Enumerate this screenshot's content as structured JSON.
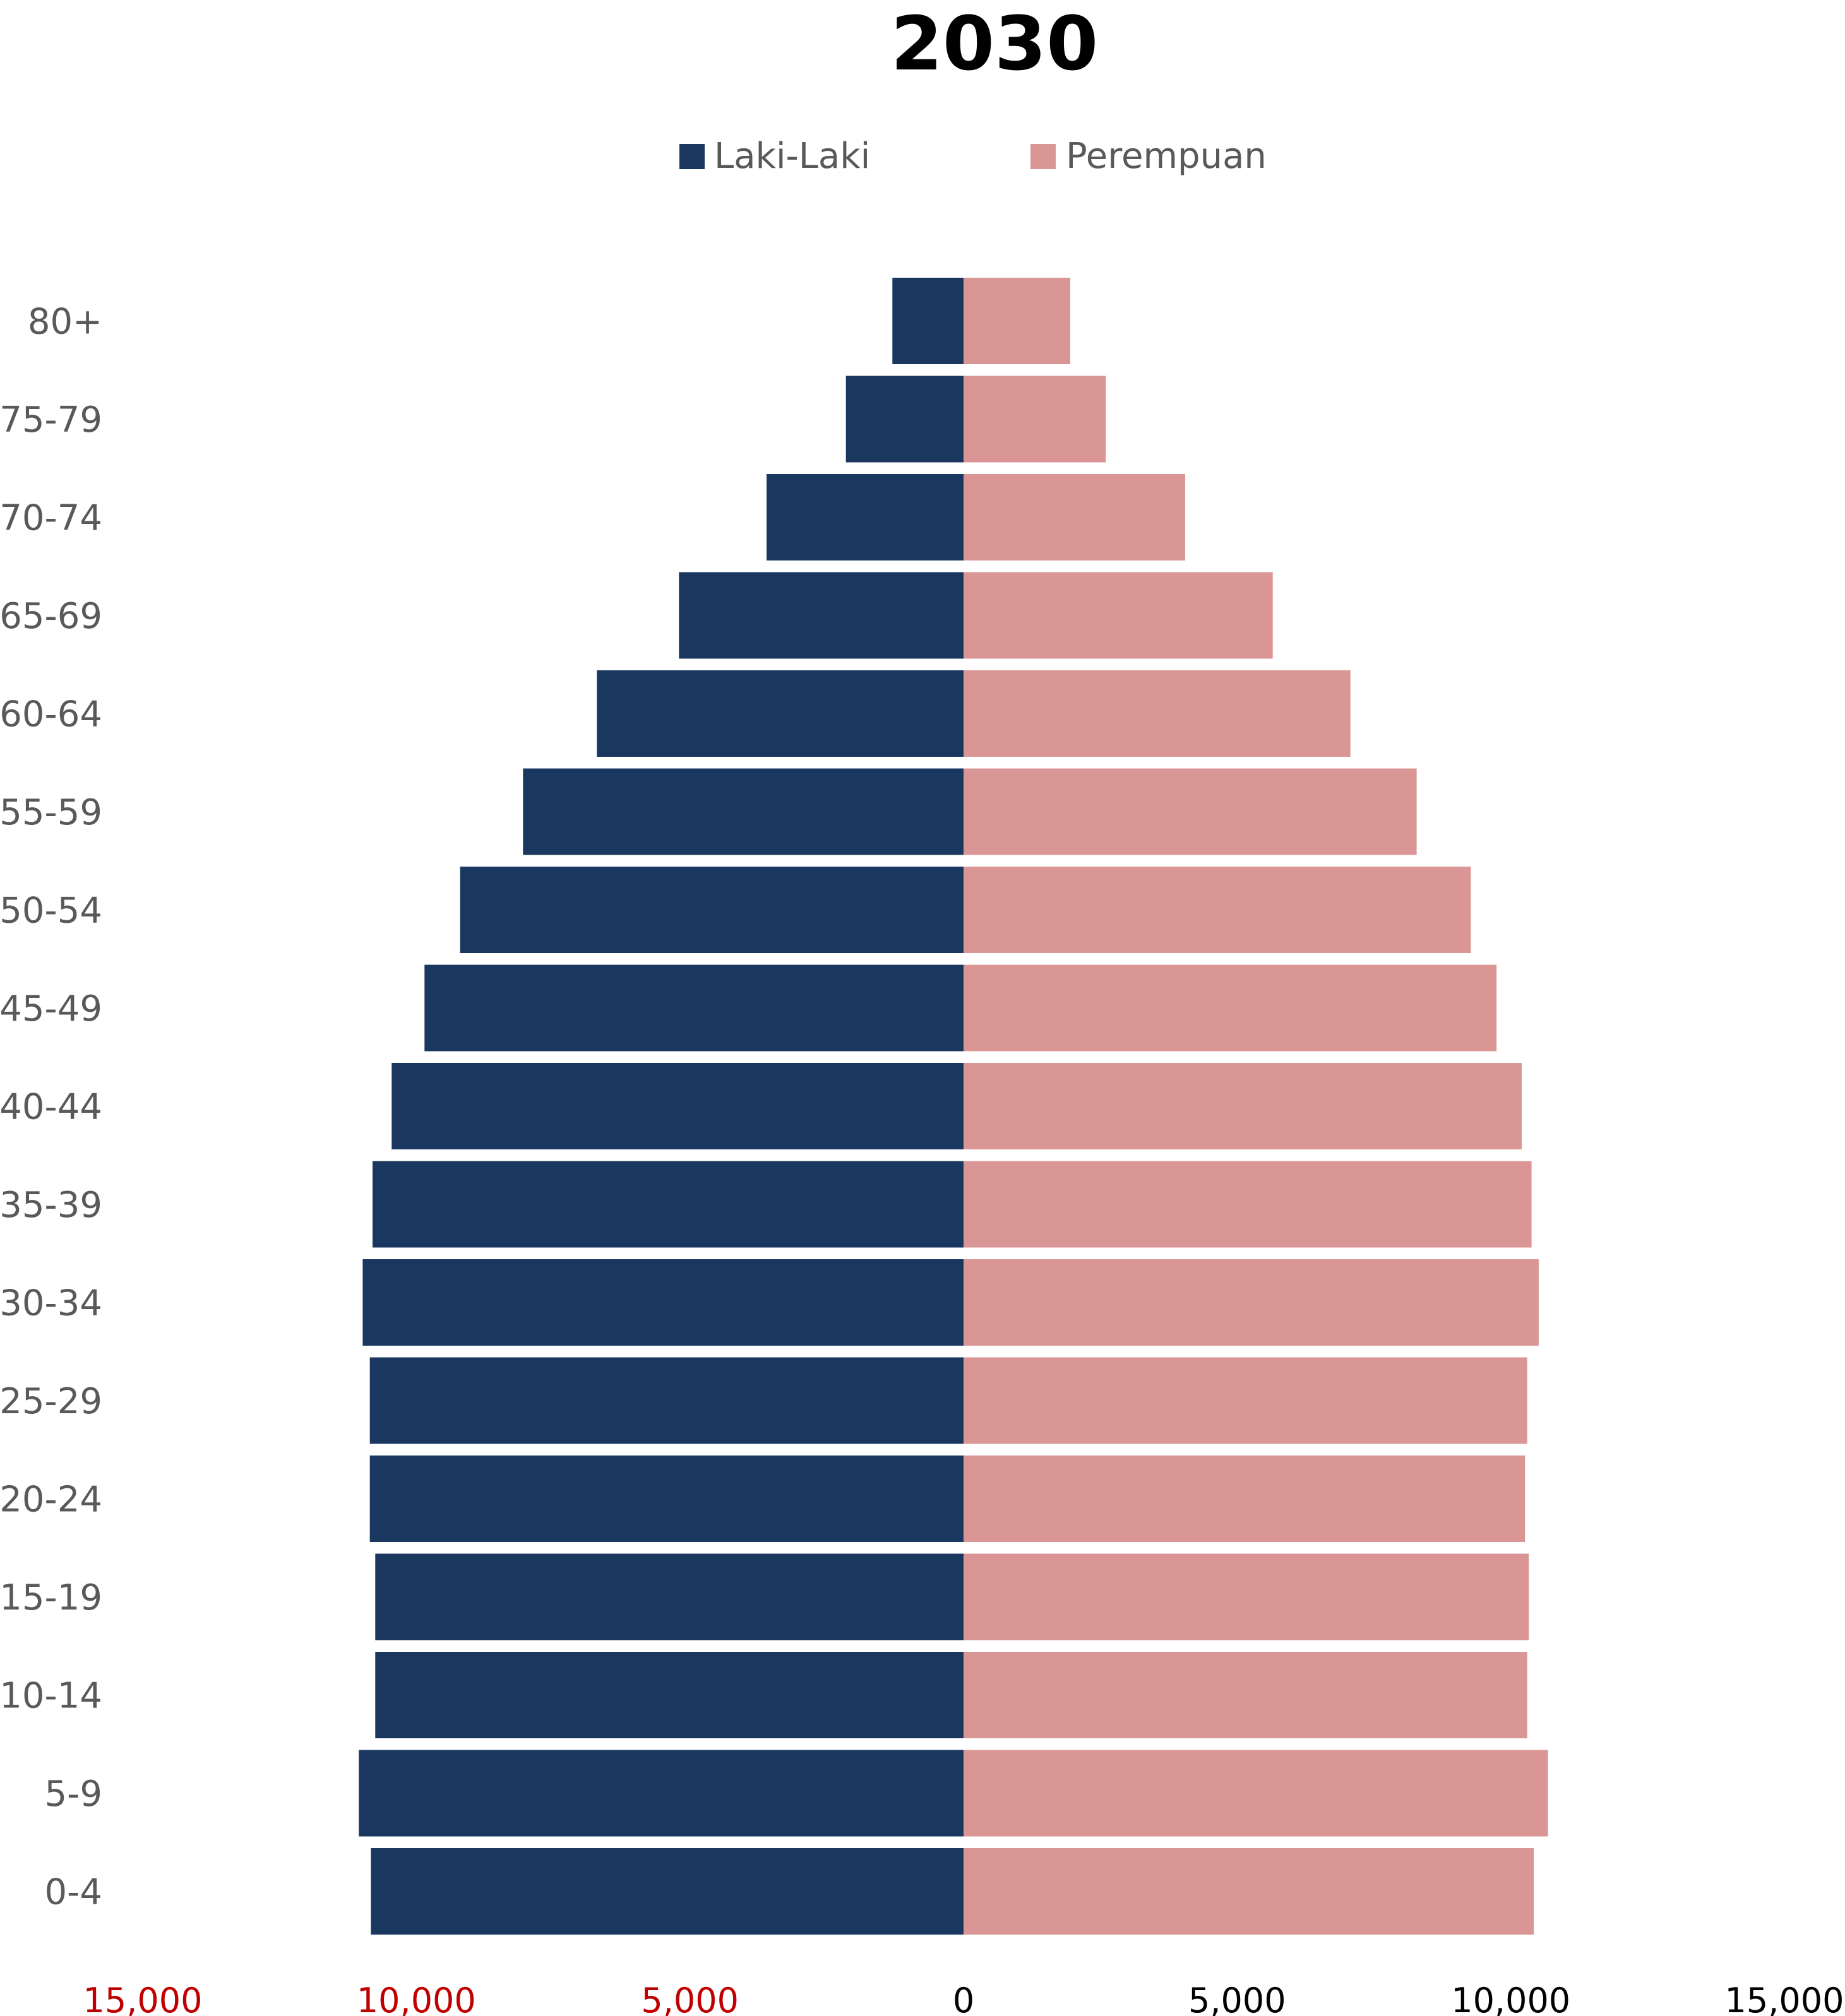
{
  "chart_data": {
    "type": "bar",
    "orientation": "horizontal",
    "title": "2030",
    "categories": [
      "80+",
      "75-79",
      "70-74",
      "65-69",
      "60-64",
      "55-59",
      "50-54",
      "45-49",
      "40-44",
      "35-39",
      "30-34",
      "25-29",
      "20-24",
      "15-19",
      "10-14",
      "5-9",
      "0-4"
    ],
    "series": [
      {
        "name": "Laki-Laki",
        "color": "#1a3760",
        "side": "left",
        "values": [
          1300,
          2150,
          3600,
          5200,
          6700,
          8050,
          9200,
          9850,
          10450,
          10800,
          10980,
          10850,
          10850,
          10750,
          10750,
          11050,
          10830
        ]
      },
      {
        "name": "Perempuan",
        "color": "#d99694",
        "side": "right",
        "values": [
          1950,
          2600,
          4050,
          5650,
          7070,
          8280,
          9270,
          9740,
          10200,
          10380,
          10510,
          10300,
          10260,
          10330,
          10300,
          10680,
          10420
        ]
      }
    ],
    "xlim": [
      -15000,
      15000
    ],
    "x_ticks": [
      {
        "value": -15000,
        "label": "15,000",
        "color": "#c00000"
      },
      {
        "value": -10000,
        "label": "10,000",
        "color": "#c00000"
      },
      {
        "value": -5000,
        "label": "5,000",
        "color": "#c00000"
      },
      {
        "value": 0,
        "label": "0",
        "color": "#000000"
      },
      {
        "value": 5000,
        "label": "5,000",
        "color": "#000000"
      },
      {
        "value": 10000,
        "label": "10,000",
        "color": "#000000"
      },
      {
        "value": 15000,
        "label": "15,000",
        "color": "#000000"
      }
    ],
    "legend": "top-center",
    "grid": false,
    "xlabel": "",
    "ylabel": ""
  }
}
